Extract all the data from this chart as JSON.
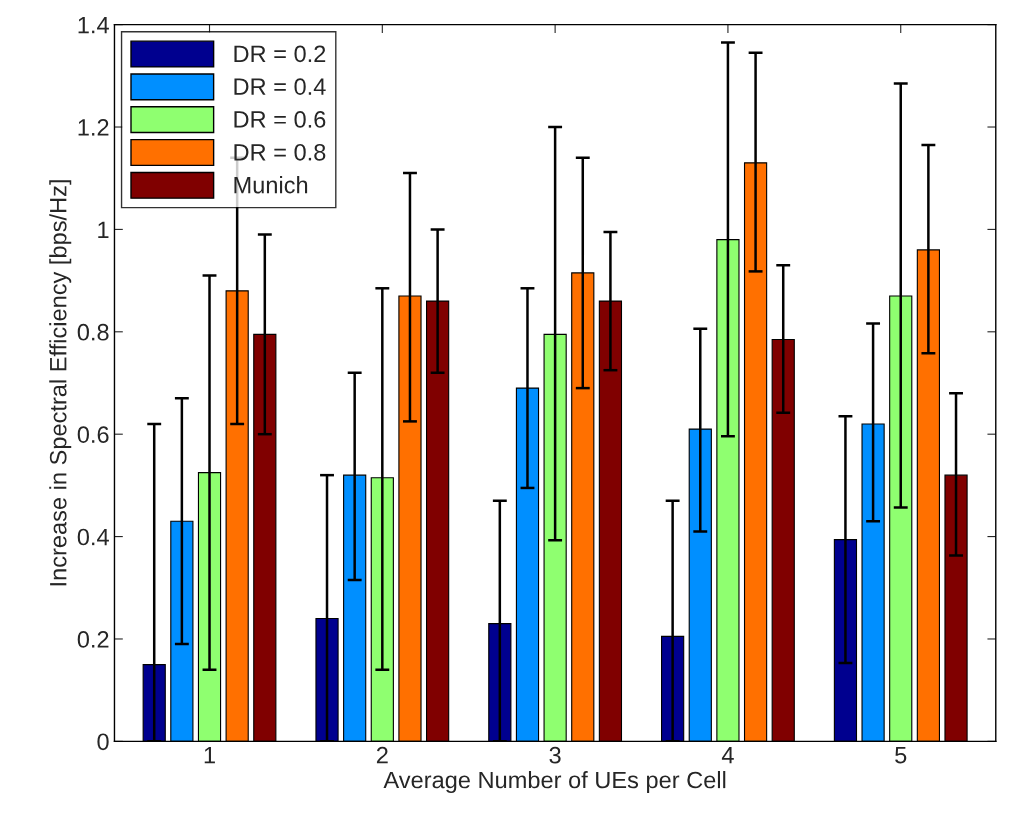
{
  "chart_data": {
    "type": "bar",
    "xlabel": "Average Number of UEs per Cell",
    "ylabel": "Increase in Spectral Efficiency [bps/Hz]",
    "categories": [
      "1",
      "2",
      "3",
      "4",
      "5"
    ],
    "series": [
      {
        "name": "DR = 0.2",
        "color": "#00008f",
        "values": [
          0.15,
          0.24,
          0.23,
          0.205,
          0.394
        ],
        "errors": [
          [
            0,
            0.62
          ],
          [
            0,
            0.52
          ],
          [
            0,
            0.47
          ],
          [
            0,
            0.47
          ],
          [
            0.153,
            0.635
          ]
        ]
      },
      {
        "name": "DR = 0.4",
        "color": "#008fff",
        "values": [
          0.43,
          0.52,
          0.69,
          0.61,
          0.62
        ],
        "errors": [
          [
            0.19,
            0.67
          ],
          [
            0.315,
            0.72
          ],
          [
            0.495,
            0.885
          ],
          [
            0.41,
            0.806
          ],
          [
            0.43,
            0.816
          ]
        ]
      },
      {
        "name": "DR = 0.6",
        "color": "#8fff70",
        "values": [
          0.525,
          0.515,
          0.795,
          0.98,
          0.87
        ],
        "errors": [
          [
            0.14,
            0.91
          ],
          [
            0.14,
            0.885
          ],
          [
            0.393,
            1.2
          ],
          [
            0.596,
            1.365
          ],
          [
            0.457,
            1.285
          ]
        ]
      },
      {
        "name": "DR = 0.8",
        "color": "#ff7000",
        "values": [
          0.88,
          0.87,
          0.915,
          1.13,
          0.96
        ],
        "errors": [
          [
            0.62,
            1.14
          ],
          [
            0.625,
            1.11
          ],
          [
            0.69,
            1.14
          ],
          [
            0.918,
            1.345
          ],
          [
            0.758,
            1.165
          ]
        ]
      },
      {
        "name": "Munich",
        "color": "#800000",
        "values": [
          0.795,
          0.86,
          0.86,
          0.785,
          0.52
        ],
        "errors": [
          [
            0.6,
            0.99
          ],
          [
            0.72,
            1.0
          ],
          [
            0.725,
            0.995
          ],
          [
            0.642,
            0.93
          ],
          [
            0.363,
            0.68
          ]
        ]
      }
    ],
    "ylim": [
      0,
      1.4
    ],
    "yticks": [
      0,
      0.2,
      0.4,
      0.6,
      0.8,
      1,
      1.2,
      1.4
    ],
    "grid": false,
    "legend": "top left"
  }
}
